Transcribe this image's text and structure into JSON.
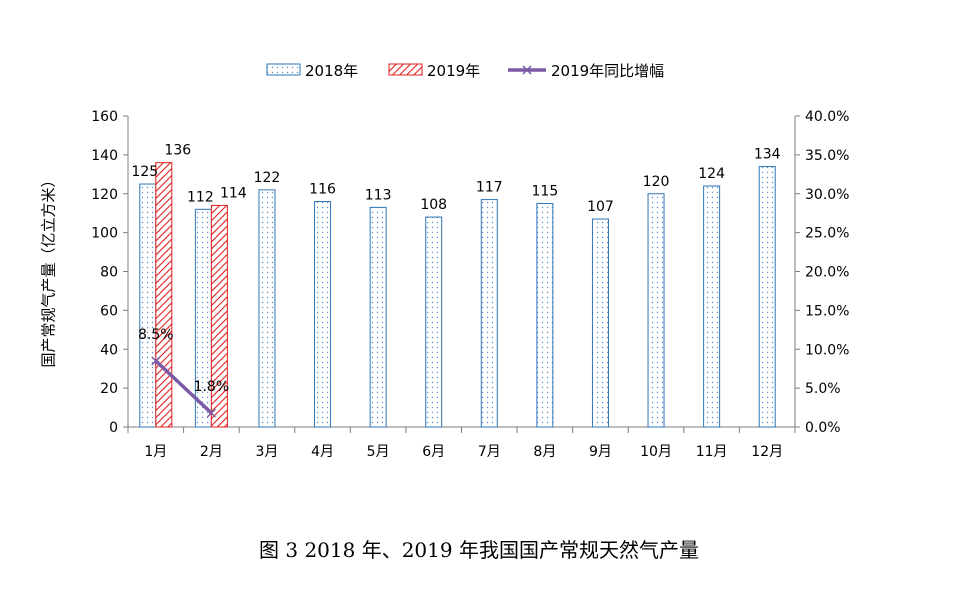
{
  "caption": "图 3 2018 年、2019 年我国国产常规天然气产量",
  "chart_data": {
    "type": "bar",
    "categories": [
      "1月",
      "2月",
      "3月",
      "4月",
      "5月",
      "6月",
      "7月",
      "8月",
      "9月",
      "10月",
      "11月",
      "12月"
    ],
    "series": [
      {
        "name": "2018年",
        "type": "bar",
        "axis": "left",
        "color": "#2e75b6",
        "values": [
          125,
          112,
          122,
          116,
          113,
          108,
          117,
          115,
          107,
          120,
          124,
          134
        ]
      },
      {
        "name": "2019年",
        "type": "bar",
        "axis": "left",
        "color": "#e02020",
        "values": [
          136,
          114,
          null,
          null,
          null,
          null,
          null,
          null,
          null,
          null,
          null,
          null
        ]
      },
      {
        "name": "2019年同比增幅",
        "type": "line",
        "axis": "right",
        "color": "#7b5aa6",
        "values": [
          8.5,
          1.8,
          null,
          null,
          null,
          null,
          null,
          null,
          null,
          null,
          null,
          null
        ],
        "labels": [
          "8.5%",
          "1.8%"
        ]
      }
    ],
    "ylabel": "国产常规气产量（亿立方米）",
    "ylim": [
      0,
      160
    ],
    "y_ticks": [
      "0",
      "20",
      "40",
      "60",
      "80",
      "100",
      "120",
      "140",
      "160"
    ],
    "y2lim": [
      0,
      40
    ],
    "y2_ticks": [
      "0.0%",
      "5.0%",
      "10.0%",
      "15.0%",
      "20.0%",
      "25.0%",
      "30.0%",
      "35.0%",
      "40.0%"
    ],
    "legend_position": "top",
    "grid": false
  }
}
